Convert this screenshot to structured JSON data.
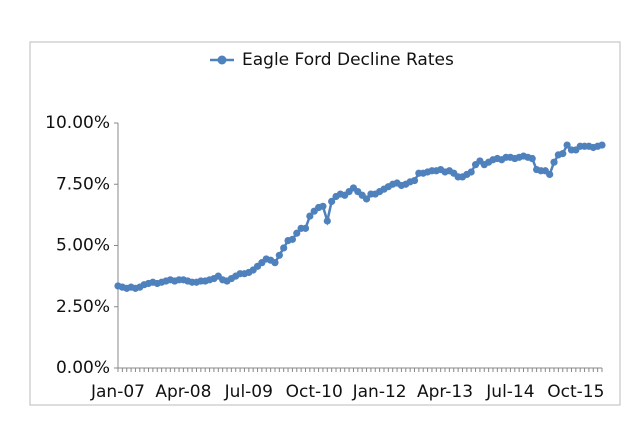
{
  "chart_data": {
    "type": "line",
    "categories": [
      "Jan-07",
      null,
      null,
      null,
      null,
      null,
      null,
      null,
      null,
      null,
      null,
      null,
      null,
      null,
      null,
      "Apr-08",
      null,
      null,
      null,
      null,
      null,
      null,
      null,
      null,
      null,
      null,
      null,
      null,
      null,
      null,
      "Jul-09",
      null,
      null,
      null,
      null,
      null,
      null,
      null,
      null,
      null,
      null,
      null,
      null,
      null,
      null,
      "Oct-10",
      null,
      null,
      null,
      null,
      null,
      null,
      null,
      null,
      null,
      null,
      null,
      null,
      null,
      null,
      "Jan-12",
      null,
      null,
      null,
      null,
      null,
      null,
      null,
      null,
      null,
      null,
      null,
      null,
      null,
      null,
      "Apr-13",
      null,
      null,
      null,
      null,
      null,
      null,
      null,
      null,
      null,
      null,
      null,
      null,
      null,
      null,
      "Jul-14",
      null,
      null,
      null,
      null,
      null,
      null,
      null,
      null,
      null,
      null,
      null,
      null,
      null,
      null,
      "Oct-15",
      null,
      null,
      null,
      null,
      null,
      null
    ],
    "series": [
      {
        "name": "Eagle Ford Decline Rates",
        "color": "#4f81bd",
        "values": [
          3.35,
          3.3,
          3.25,
          3.3,
          3.25,
          3.3,
          3.4,
          3.45,
          3.5,
          3.45,
          3.5,
          3.55,
          3.6,
          3.55,
          3.6,
          3.6,
          3.55,
          3.5,
          3.5,
          3.55,
          3.55,
          3.6,
          3.65,
          3.75,
          3.6,
          3.55,
          3.65,
          3.75,
          3.85,
          3.85,
          3.9,
          4.0,
          4.15,
          4.3,
          4.45,
          4.4,
          4.3,
          4.6,
          4.9,
          5.2,
          5.25,
          5.5,
          5.7,
          5.7,
          6.2,
          6.4,
          6.55,
          6.6,
          6.0,
          6.8,
          7.0,
          7.1,
          7.05,
          7.2,
          7.35,
          7.2,
          7.05,
          6.9,
          7.1,
          7.1,
          7.2,
          7.3,
          7.4,
          7.5,
          7.55,
          7.45,
          7.5,
          7.6,
          7.65,
          7.95,
          7.95,
          8.0,
          8.05,
          8.05,
          8.1,
          8.0,
          8.05,
          7.95,
          7.8,
          7.8,
          7.9,
          8.0,
          8.3,
          8.45,
          8.3,
          8.4,
          8.5,
          8.55,
          8.5,
          8.6,
          8.6,
          8.55,
          8.6,
          8.65,
          8.6,
          8.55,
          8.1,
          8.05,
          8.05,
          7.9,
          8.4,
          8.7,
          8.75,
          9.1,
          8.9,
          8.9,
          9.05,
          9.05,
          9.05,
          9.0,
          9.05,
          9.1
        ]
      }
    ],
    "ylim": [
      0,
      10
    ],
    "yticks": [
      {
        "value": 0,
        "label": "0.00%"
      },
      {
        "value": 2.5,
        "label": "2.50%"
      },
      {
        "value": 5,
        "label": "5.00%"
      },
      {
        "value": 7.5,
        "label": "7.50%"
      },
      {
        "value": 10,
        "label": "10.00%"
      }
    ],
    "grid": false,
    "legend": "top"
  }
}
